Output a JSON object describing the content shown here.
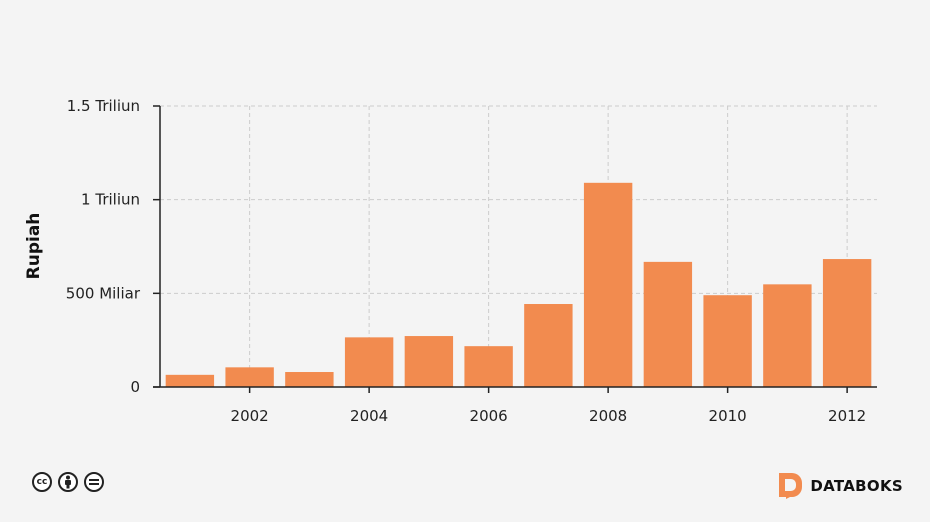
{
  "chart_data": {
    "type": "bar",
    "categories": [
      "2001",
      "2002",
      "2003",
      "2004",
      "2005",
      "2006",
      "2007",
      "2008",
      "2009",
      "2010",
      "2011",
      "2012"
    ],
    "values": [
      65000000000,
      105000000000,
      80000000000,
      265000000000,
      272000000000,
      218000000000,
      443000000000,
      1090000000000,
      668000000000,
      490000000000,
      548000000000,
      683000000000
    ],
    "xlabel": "",
    "ylabel": "Rupiah",
    "ylim": [
      0,
      1500000000000
    ],
    "y_ticks": [
      {
        "value": 0,
        "label": "0"
      },
      {
        "value": 500000000000,
        "label": "500 Miliar"
      },
      {
        "value": 1000000000000,
        "label": "1 Triliun"
      },
      {
        "value": 1500000000000,
        "label": "1.5 Triliun"
      }
    ],
    "x_tick_labels": [
      "2002",
      "2004",
      "2006",
      "2008",
      "2010",
      "2012"
    ],
    "grid": true,
    "colors": {
      "bar": "#f28b4f",
      "grid": "#cccccc",
      "axis": "#222222"
    }
  },
  "footer": {
    "license_icons": [
      "cc",
      "by",
      "nd"
    ],
    "license_icon_names": [
      "creative-commons-icon",
      "attribution-icon",
      "no-derivatives-icon"
    ],
    "brand": "DATABOKS",
    "brand_color": "#f28b4f"
  }
}
